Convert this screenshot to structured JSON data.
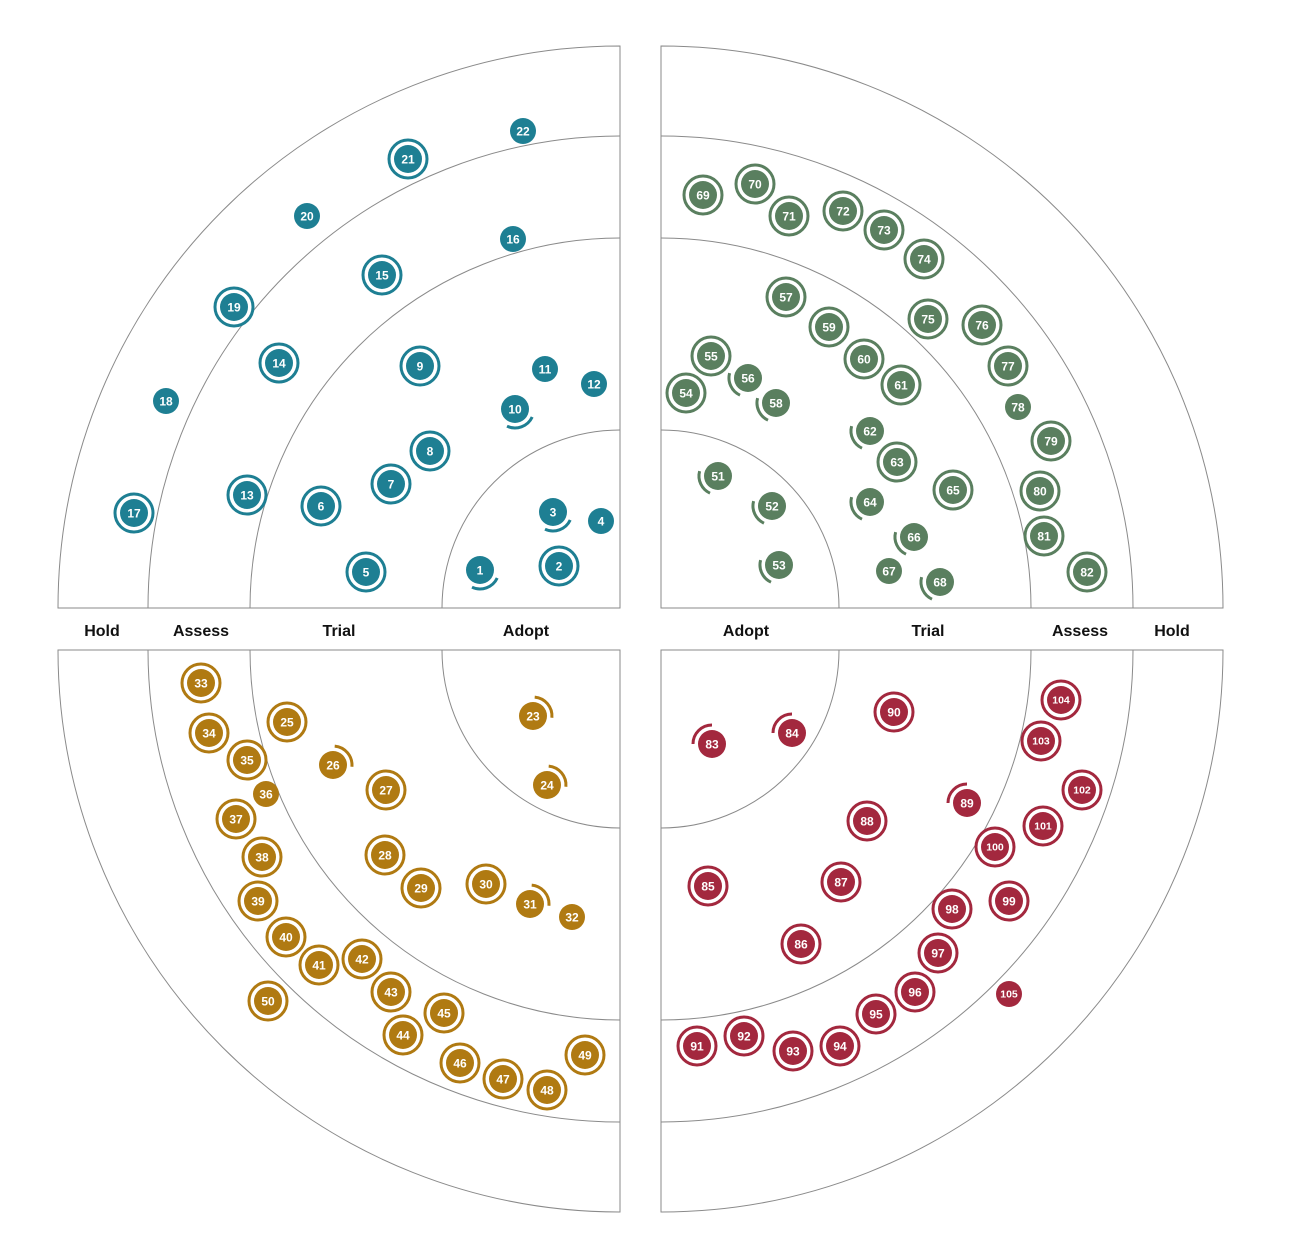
{
  "rings": [
    "Adopt",
    "Trial",
    "Assess",
    "Hold"
  ],
  "quadrants": [
    {
      "name": "top-left",
      "color": "#1e7f93",
      "blips": [
        {
          "id": "1",
          "style": "arc"
        },
        {
          "id": "2",
          "style": "ring"
        },
        {
          "id": "3",
          "style": "arc"
        },
        {
          "id": "4",
          "style": "plain"
        },
        {
          "id": "5",
          "style": "ring"
        },
        {
          "id": "6",
          "style": "ring"
        },
        {
          "id": "7",
          "style": "ring"
        },
        {
          "id": "8",
          "style": "ring"
        },
        {
          "id": "9",
          "style": "ring"
        },
        {
          "id": "10",
          "style": "arc"
        },
        {
          "id": "11",
          "style": "plain"
        },
        {
          "id": "12",
          "style": "plain"
        },
        {
          "id": "13",
          "style": "ring"
        },
        {
          "id": "14",
          "style": "ring"
        },
        {
          "id": "15",
          "style": "ring"
        },
        {
          "id": "16",
          "style": "plain"
        },
        {
          "id": "17",
          "style": "ring"
        },
        {
          "id": "18",
          "style": "plain"
        },
        {
          "id": "19",
          "style": "ring"
        },
        {
          "id": "20",
          "style": "plain"
        },
        {
          "id": "21",
          "style": "ring"
        },
        {
          "id": "22",
          "style": "plain"
        }
      ]
    },
    {
      "name": "top-right",
      "color": "#5a7f5f",
      "blips": [
        {
          "id": "51",
          "style": "arc"
        },
        {
          "id": "52",
          "style": "arc"
        },
        {
          "id": "53",
          "style": "arc"
        },
        {
          "id": "54",
          "style": "ring"
        },
        {
          "id": "55",
          "style": "ring"
        },
        {
          "id": "56",
          "style": "arc"
        },
        {
          "id": "57",
          "style": "ring"
        },
        {
          "id": "58",
          "style": "arc"
        },
        {
          "id": "59",
          "style": "ring"
        },
        {
          "id": "60",
          "style": "ring"
        },
        {
          "id": "61",
          "style": "ring"
        },
        {
          "id": "62",
          "style": "arc"
        },
        {
          "id": "63",
          "style": "ring"
        },
        {
          "id": "64",
          "style": "arc"
        },
        {
          "id": "65",
          "style": "ring"
        },
        {
          "id": "66",
          "style": "arc"
        },
        {
          "id": "67",
          "style": "plain"
        },
        {
          "id": "68",
          "style": "arc"
        },
        {
          "id": "69",
          "style": "ring"
        },
        {
          "id": "70",
          "style": "ring"
        },
        {
          "id": "71",
          "style": "ring"
        },
        {
          "id": "72",
          "style": "ring"
        },
        {
          "id": "73",
          "style": "ring"
        },
        {
          "id": "74",
          "style": "ring"
        },
        {
          "id": "75",
          "style": "ring"
        },
        {
          "id": "76",
          "style": "ring"
        },
        {
          "id": "77",
          "style": "ring"
        },
        {
          "id": "78",
          "style": "plain"
        },
        {
          "id": "79",
          "style": "ring"
        },
        {
          "id": "80",
          "style": "ring"
        },
        {
          "id": "81",
          "style": "ring"
        },
        {
          "id": "82",
          "style": "ring"
        }
      ]
    },
    {
      "name": "bottom-left",
      "color": "#b07a12",
      "blips": [
        {
          "id": "23",
          "style": "arc"
        },
        {
          "id": "24",
          "style": "arc"
        },
        {
          "id": "25",
          "style": "ring"
        },
        {
          "id": "26",
          "style": "arc"
        },
        {
          "id": "27",
          "style": "ring"
        },
        {
          "id": "28",
          "style": "ring"
        },
        {
          "id": "29",
          "style": "ring"
        },
        {
          "id": "30",
          "style": "ring"
        },
        {
          "id": "31",
          "style": "arc"
        },
        {
          "id": "32",
          "style": "plain"
        },
        {
          "id": "33",
          "style": "ring"
        },
        {
          "id": "34",
          "style": "ring"
        },
        {
          "id": "35",
          "style": "ring"
        },
        {
          "id": "36",
          "style": "plain"
        },
        {
          "id": "37",
          "style": "ring"
        },
        {
          "id": "38",
          "style": "ring"
        },
        {
          "id": "39",
          "style": "ring"
        },
        {
          "id": "40",
          "style": "ring"
        },
        {
          "id": "41",
          "style": "ring"
        },
        {
          "id": "42",
          "style": "ring"
        },
        {
          "id": "43",
          "style": "ring"
        },
        {
          "id": "44",
          "style": "ring"
        },
        {
          "id": "45",
          "style": "ring"
        },
        {
          "id": "46",
          "style": "ring"
        },
        {
          "id": "47",
          "style": "ring"
        },
        {
          "id": "48",
          "style": "ring"
        },
        {
          "id": "49",
          "style": "ring"
        },
        {
          "id": "50",
          "style": "ring"
        }
      ]
    },
    {
      "name": "bottom-right",
      "color": "#a3283e",
      "blips": [
        {
          "id": "83",
          "style": "arc"
        },
        {
          "id": "84",
          "style": "arc"
        },
        {
          "id": "85",
          "style": "ring"
        },
        {
          "id": "86",
          "style": "ring"
        },
        {
          "id": "87",
          "style": "ring"
        },
        {
          "id": "88",
          "style": "ring"
        },
        {
          "id": "89",
          "style": "arc"
        },
        {
          "id": "90",
          "style": "ring"
        },
        {
          "id": "91",
          "style": "ring"
        },
        {
          "id": "92",
          "style": "ring"
        },
        {
          "id": "93",
          "style": "ring"
        },
        {
          "id": "94",
          "style": "ring"
        },
        {
          "id": "95",
          "style": "ring"
        },
        {
          "id": "96",
          "style": "ring"
        },
        {
          "id": "97",
          "style": "ring"
        },
        {
          "id": "98",
          "style": "ring"
        },
        {
          "id": "99",
          "style": "ring"
        },
        {
          "id": "100",
          "style": "ring"
        },
        {
          "id": "101",
          "style": "ring"
        },
        {
          "id": "102",
          "style": "ring"
        },
        {
          "id": "103",
          "style": "ring"
        },
        {
          "id": "104",
          "style": "ring"
        },
        {
          "id": "105",
          "style": "plain"
        }
      ]
    }
  ]
}
